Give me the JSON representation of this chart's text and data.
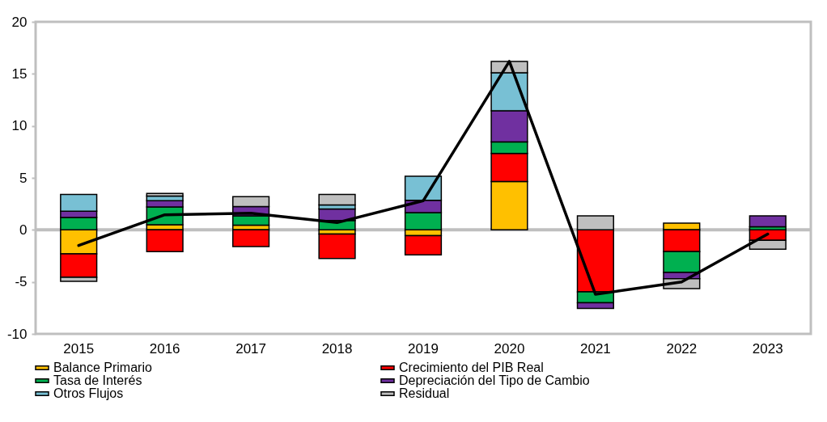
{
  "chart_data": {
    "type": "bar",
    "stacked": true,
    "categories": [
      "2015",
      "2016",
      "2017",
      "2018",
      "2019",
      "2020",
      "2021",
      "2022",
      "2023"
    ],
    "ylim": [
      -10,
      20
    ],
    "yticks": [
      -10,
      -5,
      0,
      5,
      10,
      15,
      20
    ],
    "grid": false,
    "legend": "bottom",
    "ref_lines": [
      {
        "axis": "y",
        "value": 0,
        "color": "#bfbfbf"
      }
    ],
    "series": [
      {
        "name": "Balance Primario",
        "color": "#ffc000",
        "values": [
          -2.3,
          0.5,
          0.45,
          -0.4,
          -0.55,
          4.65,
          null,
          0.65,
          null
        ]
      },
      {
        "name": "Crecimiento del PIB Real",
        "color": "#ff0000",
        "values": [
          -2.25,
          -2.1,
          -1.6,
          -2.35,
          -1.85,
          2.7,
          -5.95,
          -2.1,
          -1.0
        ]
      },
      {
        "name": "Tasa de Interés",
        "color": "#00b050",
        "values": [
          1.2,
          1.7,
          0.9,
          0.9,
          1.65,
          1.1,
          -1.05,
          -2.0,
          0.3
        ]
      },
      {
        "name": "Depreciación del Tipo de Cambio",
        "color": "#7030a0",
        "values": [
          0.6,
          0.6,
          0.9,
          1.1,
          1.2,
          3.0,
          -0.55,
          -0.6,
          1.05
        ]
      },
      {
        "name": "Otros Flujos",
        "color": "#78c0d4",
        "values": [
          1.6,
          0.45,
          null,
          0.4,
          2.3,
          3.65,
          null,
          null,
          null
        ]
      },
      {
        "name": "Residual",
        "color": "#bfbfbf",
        "values": [
          -0.4,
          0.25,
          0.95,
          1.0,
          null,
          1.1,
          1.35,
          -0.95,
          -0.85
        ]
      },
      {
        "type": "line",
        "color": "#000000",
        "marker": "none",
        "line_style": "solid",
        "values": [
          -1.5,
          1.45,
          1.6,
          0.7,
          2.8,
          16.2,
          -6.2,
          -5.0,
          -0.4
        ]
      }
    ]
  }
}
